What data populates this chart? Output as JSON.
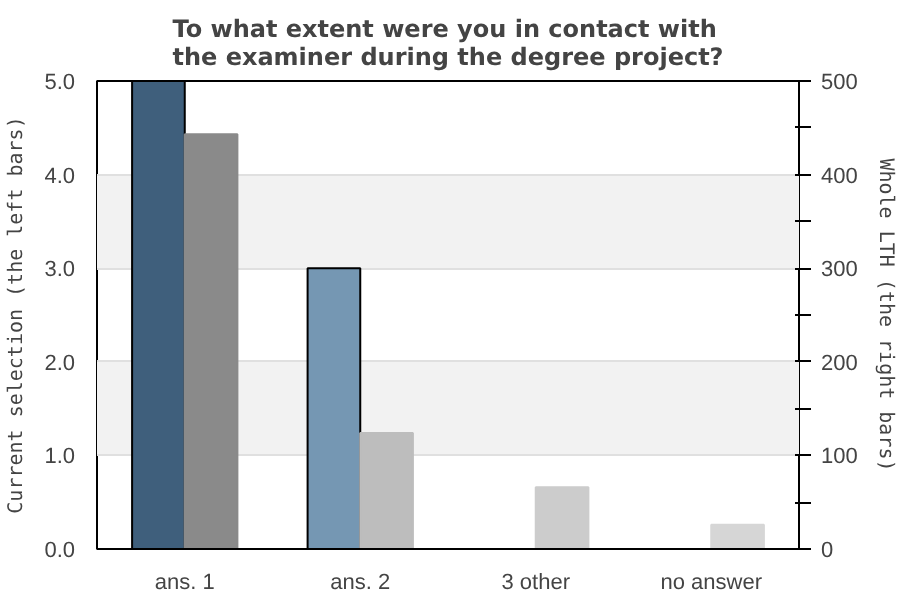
{
  "chart_data": {
    "type": "bar",
    "title": "To what extent were you in contact with\nthe examiner during the degree project?",
    "ylabel": "Current selection (the left bars)",
    "y2label": "Whole LTH (the right bars)",
    "categories": [
      "ans. 1",
      "ans. 2",
      "3 other",
      "no answer"
    ],
    "series": [
      {
        "colors": [
          "#3f5f7c",
          "#7597b3",
          "#7597b3",
          "#7597b3"
        ],
        "values": [
          5,
          3,
          0,
          0
        ]
      },
      {
        "colors": [
          "#8a8a8a",
          "#bdbdbd",
          "#cccccc",
          "#d6d6d6"
        ],
        "values": [
          443,
          124,
          66,
          26
        ],
        "axis": "y2"
      }
    ],
    "ylim": [
      0,
      5
    ],
    "yticks": [
      {
        "value": 0,
        "label": "0.0"
      },
      {
        "value": 1,
        "label": "1.0"
      },
      {
        "value": 2,
        "label": "2.0"
      },
      {
        "value": 3,
        "label": "3.0"
      },
      {
        "value": 4,
        "label": "4.0"
      },
      {
        "value": 5,
        "label": "5.0"
      }
    ],
    "y2lim": [
      0,
      500
    ],
    "y2ticks": [
      0,
      {
        "value": 50,
        "label": null
      },
      100,
      {
        "value": 150,
        "label": null
      },
      200,
      {
        "value": 250,
        "label": null
      },
      300,
      {
        "value": 350,
        "label": null
      },
      400,
      {
        "value": 450,
        "label": null
      },
      500
    ],
    "grid": "y"
  }
}
